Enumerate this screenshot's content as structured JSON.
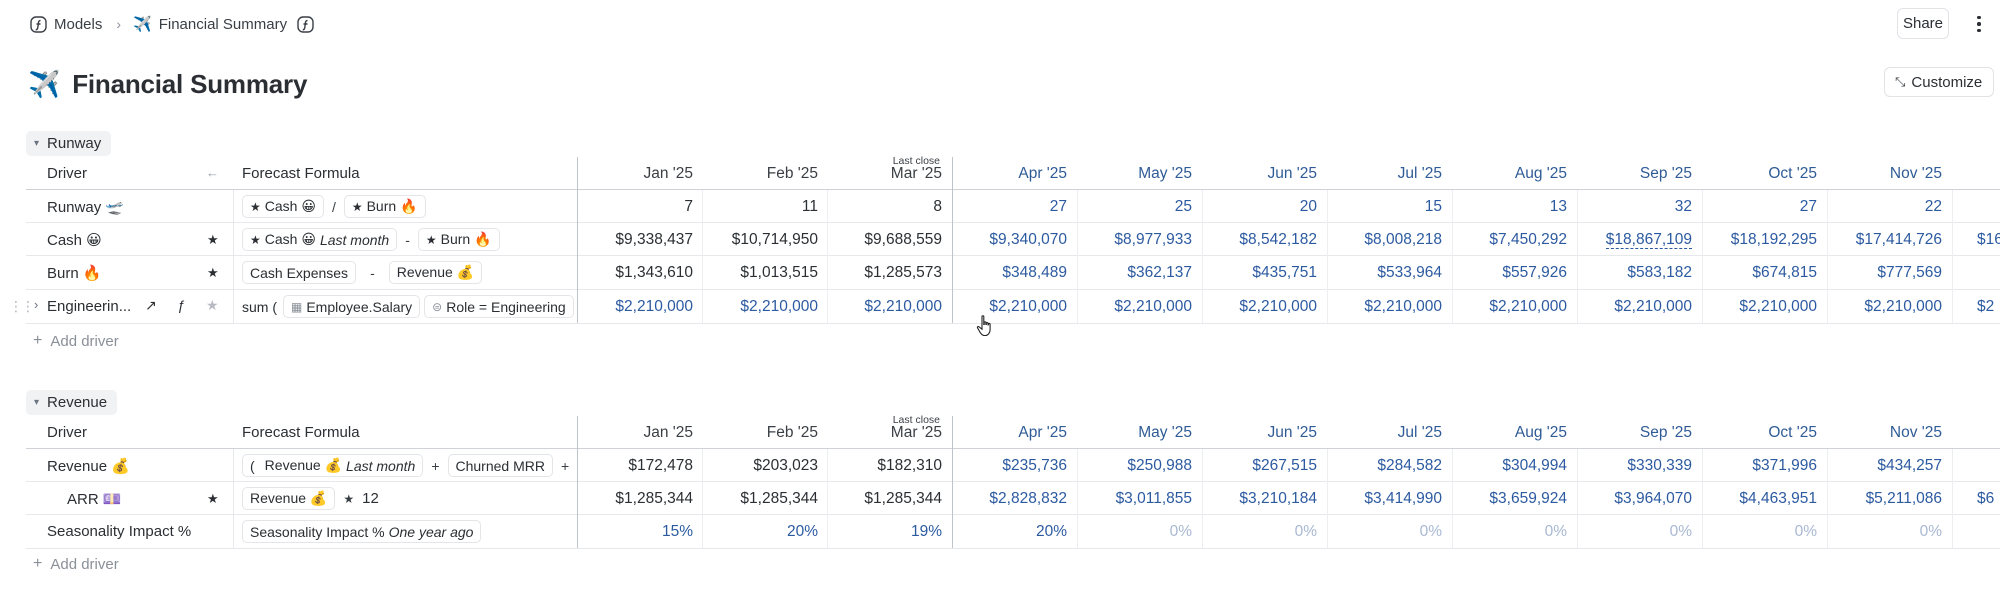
{
  "breadcrumb": {
    "root": "Models",
    "current": "Financial Summary",
    "current_emoji": "✈️"
  },
  "toolbar": {
    "share": "Share",
    "customize": "Customize"
  },
  "page": {
    "title": "Financial Summary",
    "emoji": "✈️"
  },
  "months": [
    "Jan '25",
    "Feb '25",
    "Mar '25",
    "Apr '25",
    "May '25",
    "Jun '25",
    "Jul '25",
    "Aug '25",
    "Sep '25",
    "Oct '25",
    "Nov '25"
  ],
  "last_close_label": "Last close",
  "columns": {
    "driver": "Driver",
    "formula": "Forecast Formula"
  },
  "add_driver": "Add driver",
  "runway": {
    "name": "Runway",
    "rows": [
      {
        "name": "Runway 🛫",
        "values": [
          "7",
          "11",
          "8",
          "27",
          "25",
          "20",
          "15",
          "13",
          "32",
          "27",
          "22"
        ],
        "f": {
          "p1": "Cash 😀",
          "op1": "/",
          "p2": "Burn 🔥"
        }
      },
      {
        "name": "Cash 😀",
        "values": [
          "$9,338,437",
          "$10,714,950",
          "$9,688,559",
          "$9,340,070",
          "$8,977,933",
          "$8,542,182",
          "$8,008,218",
          "$7,450,292",
          "$18,867,109",
          "$18,192,295",
          "$17,414,726"
        ],
        "partial": "$16",
        "f": {
          "p1": "Cash 😀",
          "p1i": "Last month",
          "op1": "-",
          "p2": "Burn 🔥"
        }
      },
      {
        "name": "Burn 🔥",
        "values": [
          "$1,343,610",
          "$1,013,515",
          "$1,285,573",
          "$348,489",
          "$362,137",
          "$435,751",
          "$533,964",
          "$557,926",
          "$583,182",
          "$674,815",
          "$777,569"
        ],
        "f": {
          "p1": "Cash Expenses",
          "op1": "-",
          "p2": "Revenue 💰"
        }
      },
      {
        "name": "Engineerin...",
        "values": [
          "$2,210,000",
          "$2,210,000",
          "$2,210,000",
          "$2,210,000",
          "$2,210,000",
          "$2,210,000",
          "$2,210,000",
          "$2,210,000",
          "$2,210,000",
          "$2,210,000",
          "$2,210,000"
        ],
        "partial": "$2",
        "f": {
          "fn": "sum (",
          "p1": "Employee.Salary",
          "p2": "Role = Engineering"
        }
      }
    ]
  },
  "revenue": {
    "name": "Revenue",
    "rows": [
      {
        "name": "Revenue 💰",
        "values": [
          "$172,478",
          "$203,023",
          "$182,310",
          "$235,736",
          "$250,988",
          "$267,515",
          "$284,582",
          "$304,994",
          "$330,339",
          "$371,996",
          "$434,257"
        ],
        "f": {
          "open": "(",
          "p1": "Revenue 💰",
          "p1i": "Last month",
          "op1": "+",
          "p2": "Churned MRR",
          "op2": "+"
        }
      },
      {
        "name": "ARR 💷",
        "values": [
          "$1,285,344",
          "$1,285,344",
          "$1,285,344",
          "$2,828,832",
          "$3,011,855",
          "$3,210,184",
          "$3,414,990",
          "$3,659,924",
          "$3,964,070",
          "$4,463,951",
          "$5,211,086"
        ],
        "partial": "$6",
        "f": {
          "p1": "Revenue 💰",
          "op1": "★",
          "num": "12"
        }
      },
      {
        "name": "Seasonality Impact %",
        "values": [
          "15%",
          "20%",
          "19%",
          "20%",
          "0%",
          "0%",
          "0%",
          "0%",
          "0%",
          "0%",
          "0%"
        ],
        "f": {
          "p1": "Seasonality Impact %",
          "p1i": "One year ago"
        }
      }
    ]
  }
}
